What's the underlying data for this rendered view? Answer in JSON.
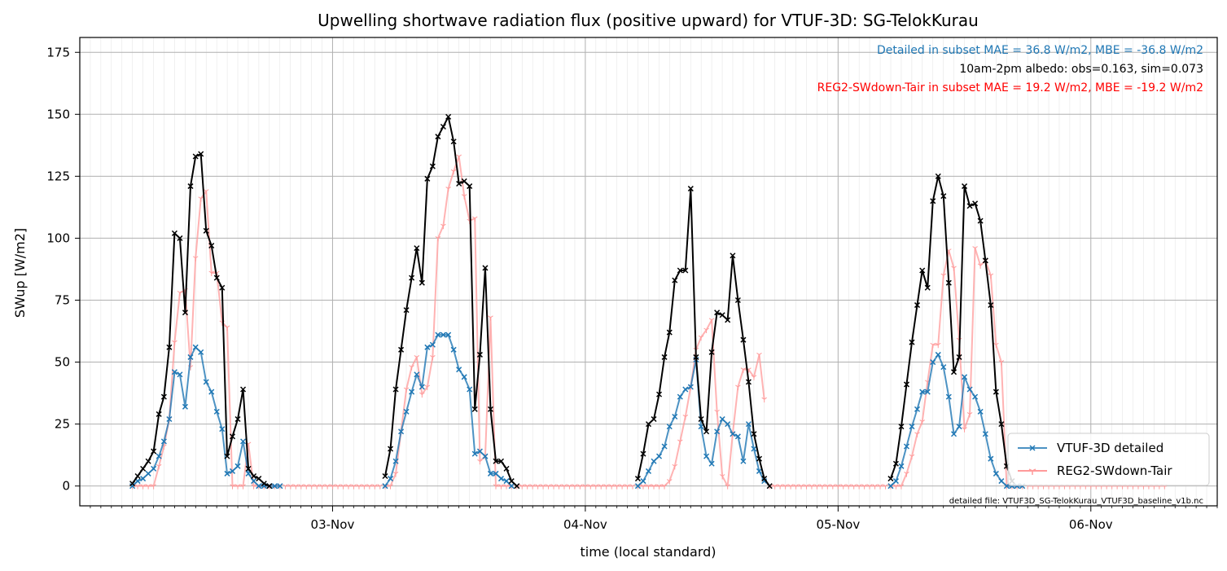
{
  "chart_data": {
    "type": "line",
    "title": "Upwelling shortwave radiation flux (positive upward) for VTUF-3D: SG-TelokKurau",
    "xlabel": "time (local standard)",
    "ylabel": "SWup [W/m2]",
    "ylim": [
      -8,
      181
    ],
    "xlim": [
      2.0,
      6.5
    ],
    "x_unit": "day of November (fractional, 2024 local standard time)",
    "yticks": [
      0,
      25,
      50,
      75,
      100,
      125,
      150,
      175
    ],
    "xticks": [
      {
        "value": 3.0,
        "label": "03-Nov"
      },
      {
        "value": 4.0,
        "label": "04-Nov"
      },
      {
        "value": 5.0,
        "label": "05-Nov"
      },
      {
        "value": 6.0,
        "label": "06-Nov"
      }
    ],
    "grid": true,
    "legend_position": "lower right",
    "annotations": [
      {
        "text": "Detailed in subset MAE = 36.8 W/m2, MBE = -36.8 W/m2",
        "color": "#1f77b4"
      },
      {
        "text": "10am-2pm albedo: obs=0.163, sim=0.073",
        "color": "#000000"
      },
      {
        "text": "REG2-SWdown-Tair in subset MAE = 19.2 W/m2, MBE = -19.2 W/m2",
        "color": "#ff0000"
      }
    ],
    "footnote": "detailed file: VTUF3D_SG-TelokKurau_VTUF3D_baseline_v1b.nc",
    "series": [
      {
        "name": "VTUF-3D detailed",
        "color": "#1f77b4",
        "marker": "x",
        "legend": true,
        "x": [
          2.208,
          2.229,
          2.25,
          2.271,
          2.292,
          2.313,
          2.333,
          2.354,
          2.375,
          2.396,
          2.417,
          2.438,
          2.458,
          2.479,
          2.5,
          2.521,
          2.542,
          2.563,
          2.583,
          2.604,
          2.625,
          2.646,
          2.667,
          2.688,
          2.708,
          2.729,
          2.75,
          2.771,
          2.792,
          3.208,
          3.229,
          3.25,
          3.271,
          3.292,
          3.313,
          3.333,
          3.354,
          3.375,
          3.396,
          3.417,
          3.438,
          3.458,
          3.479,
          3.5,
          3.521,
          3.542,
          3.563,
          3.583,
          3.604,
          3.625,
          3.646,
          3.667,
          3.688,
          3.708,
          4.208,
          4.229,
          4.25,
          4.271,
          4.292,
          4.313,
          4.333,
          4.354,
          4.375,
          4.396,
          4.417,
          4.438,
          4.458,
          4.479,
          4.5,
          4.521,
          4.542,
          4.563,
          4.583,
          4.604,
          4.625,
          4.646,
          4.667,
          4.688,
          4.708,
          5.208,
          5.229,
          5.25,
          5.271,
          5.292,
          5.313,
          5.333,
          5.354,
          5.375,
          5.396,
          5.417,
          5.438,
          5.458,
          5.479,
          5.5,
          5.521,
          5.542,
          5.563,
          5.583,
          5.604,
          5.625,
          5.646,
          5.667,
          5.688,
          5.708,
          5.729
        ],
        "y": [
          0,
          2,
          3,
          5,
          7,
          12,
          18,
          27,
          46,
          45,
          32,
          52,
          56,
          54,
          42,
          38,
          30,
          23,
          5,
          6,
          8,
          18,
          5,
          2,
          0,
          0,
          0,
          0,
          0,
          0,
          3,
          10,
          22,
          30,
          38,
          45,
          40,
          56,
          57,
          61,
          61,
          61,
          55,
          47,
          44,
          39,
          13,
          14,
          12,
          5,
          5,
          3,
          2,
          0,
          0,
          2,
          6,
          10,
          12,
          16,
          24,
          28,
          36,
          39,
          40,
          51,
          24,
          12,
          9,
          22,
          27,
          25,
          21,
          20,
          10,
          25,
          15,
          6,
          2,
          0,
          2,
          8,
          16,
          24,
          31,
          38,
          38,
          50,
          53,
          48,
          36,
          21,
          24,
          44,
          39,
          36,
          30,
          21,
          11,
          5,
          2,
          0,
          0,
          0,
          0
        ]
      },
      {
        "name": "REG2-SWdown-Tair",
        "color": "#ff9a9a",
        "marker": "1",
        "legend": true,
        "x": [
          2.208,
          2.229,
          2.25,
          2.271,
          2.292,
          2.313,
          2.333,
          2.354,
          2.375,
          2.396,
          2.417,
          2.438,
          2.458,
          2.479,
          2.5,
          2.521,
          2.542,
          2.563,
          2.583,
          2.604,
          2.625,
          2.646,
          2.667,
          2.688,
          2.708,
          2.729,
          2.75,
          2.771,
          2.792,
          3.208,
          3.229,
          3.25,
          3.271,
          3.292,
          3.313,
          3.333,
          3.354,
          3.375,
          3.396,
          3.417,
          3.438,
          3.458,
          3.479,
          3.5,
          3.521,
          3.542,
          3.563,
          3.583,
          3.604,
          3.625,
          3.646,
          3.667,
          3.688,
          3.708,
          4.208,
          4.229,
          4.25,
          4.271,
          4.292,
          4.313,
          4.333,
          4.354,
          4.375,
          4.396,
          4.417,
          4.438,
          4.458,
          4.479,
          4.5,
          4.521,
          4.542,
          4.563,
          4.583,
          4.604,
          4.625,
          4.646,
          4.667,
          4.688,
          4.708,
          5.208,
          5.229,
          5.25,
          5.271,
          5.292,
          5.313,
          5.333,
          5.354,
          5.375,
          5.396,
          5.417,
          5.438,
          5.458,
          5.479,
          5.5,
          5.521,
          5.542,
          5.563,
          5.583,
          5.604,
          5.625,
          5.646,
          5.667,
          5.688,
          5.708,
          5.729
        ],
        "y": [
          0,
          0,
          0,
          0,
          0,
          8,
          16,
          27,
          58,
          78,
          79,
          48,
          92,
          116,
          119,
          86,
          86,
          66,
          64,
          0,
          0,
          0,
          17,
          0,
          0,
          0,
          0,
          0,
          0,
          0,
          0,
          5,
          22,
          39,
          48,
          52,
          37,
          40,
          52,
          100,
          105,
          120,
          127,
          133,
          117,
          107,
          108,
          10,
          12,
          68,
          0,
          0,
          0,
          0,
          0,
          0,
          0,
          0,
          0,
          0,
          2,
          8,
          18,
          28,
          40,
          55,
          60,
          63,
          67,
          30,
          4,
          0,
          21,
          40,
          47,
          47,
          44,
          53,
          35,
          0,
          0,
          0,
          5,
          12,
          21,
          26,
          42,
          57,
          57,
          85,
          95,
          88,
          59,
          23,
          29,
          96,
          89,
          91,
          85,
          57,
          50,
          0,
          0,
          0,
          0
        ]
      },
      {
        "name": "observed",
        "color": "#000000",
        "marker": "x",
        "legend": false,
        "x": [
          2.208,
          2.229,
          2.25,
          2.271,
          2.292,
          2.313,
          2.333,
          2.354,
          2.375,
          2.396,
          2.417,
          2.438,
          2.458,
          2.479,
          2.5,
          2.521,
          2.542,
          2.563,
          2.583,
          2.604,
          2.625,
          2.646,
          2.667,
          2.688,
          2.708,
          2.729,
          2.75,
          3.208,
          3.229,
          3.25,
          3.271,
          3.292,
          3.313,
          3.333,
          3.354,
          3.375,
          3.396,
          3.417,
          3.438,
          3.458,
          3.479,
          3.5,
          3.521,
          3.542,
          3.563,
          3.583,
          3.604,
          3.625,
          3.646,
          3.667,
          3.688,
          3.708,
          3.729,
          4.208,
          4.229,
          4.25,
          4.271,
          4.292,
          4.313,
          4.333,
          4.354,
          4.375,
          4.396,
          4.417,
          4.438,
          4.458,
          4.479,
          4.5,
          4.521,
          4.542,
          4.563,
          4.583,
          4.604,
          4.625,
          4.646,
          4.667,
          4.688,
          4.708,
          4.729,
          5.208,
          5.229,
          5.25,
          5.271,
          5.292,
          5.313,
          5.333,
          5.354,
          5.375,
          5.396,
          5.417,
          5.438,
          5.458,
          5.479,
          5.5,
          5.521,
          5.542,
          5.563,
          5.583,
          5.604,
          5.625,
          5.646,
          5.667,
          5.688
        ],
        "y": [
          1,
          4,
          7,
          10,
          14,
          29,
          36,
          56,
          102,
          100,
          70,
          121,
          133,
          134,
          103,
          97,
          84,
          80,
          12,
          20,
          27,
          39,
          7,
          4,
          3,
          1,
          0,
          4,
          15,
          39,
          55,
          71,
          84,
          96,
          82,
          124,
          129,
          141,
          145,
          149,
          139,
          122,
          123,
          121,
          31,
          53,
          88,
          31,
          10,
          10,
          7,
          2,
          0,
          3,
          13,
          25,
          27,
          37,
          52,
          62,
          83,
          87,
          87,
          120,
          52,
          27,
          22,
          54,
          70,
          69,
          67,
          93,
          75,
          59,
          42,
          21,
          11,
          3,
          0,
          3,
          9,
          24,
          41,
          58,
          73,
          87,
          80,
          115,
          125,
          117,
          82,
          46,
          52,
          121,
          113,
          114,
          107,
          91,
          73,
          38,
          25,
          8,
          2
        ]
      }
    ]
  }
}
